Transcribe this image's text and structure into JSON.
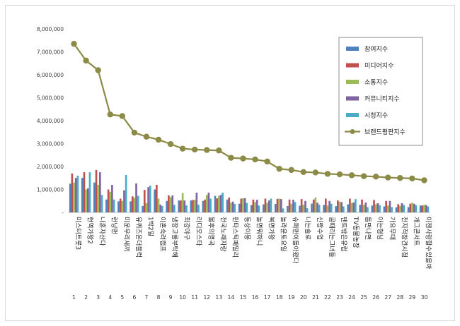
{
  "chart_data": {
    "type": "bar",
    "title": "",
    "xlabel": "",
    "ylabel": "",
    "ylim": [
      0,
      8000000
    ],
    "yticks": [
      "-",
      "1,000,000",
      "2,000,000",
      "3,000,000",
      "4,000,000",
      "5,000,000",
      "6,000,000",
      "7,000,000",
      "8,000,000"
    ],
    "grid": false,
    "legend_position": "top-right",
    "categories": [
      "1",
      "2",
      "3",
      "4",
      "5",
      "6",
      "7",
      "8",
      "9",
      "10",
      "11",
      "12",
      "13",
      "14",
      "15",
      "16",
      "17",
      "18",
      "19",
      "20",
      "21",
      "22",
      "23",
      "24",
      "25",
      "26",
      "27",
      "28",
      "29",
      "30"
    ],
    "category_names": [
      "미스터트롯3",
      "현역가왕2",
      "나혼자산다",
      "런닝맨",
      "미운우리새끼",
      "유퀴즈온더블럭",
      "1박2일",
      "이혼숙려캠프",
      "냉장고를부탁해",
      "최강야구",
      "라디오스타",
      "불후의명곡",
      "전국노래자랑",
      "판타스틱패밀리",
      "동상이몽",
      "놀면뭐하니",
      "복면가왕",
      "놀라운토요일",
      "슈퍼맨이돌아왔다",
      "나는솔로",
      "신랑수업",
      "골때리는그녀들",
      "텐트밖은유럽",
      "TV동물농장",
      "틈만나면",
      "아는형님",
      "가요무대",
      "전지적참견시점",
      "개그콘서트",
      "이젠사랑할수있을까"
    ],
    "series": [
      {
        "name": "참여지수",
        "color": "#4f81bd",
        "values": [
          1250000,
          1500000,
          1300000,
          560000,
          480000,
          480000,
          280000,
          1000000,
          500000,
          520000,
          520000,
          500000,
          720000,
          560000,
          380000,
          320000,
          350000,
          370000,
          280000,
          290000,
          380000,
          320000,
          270000,
          350000,
          330000,
          300000,
          260000,
          220000,
          230000,
          300000
        ]
      },
      {
        "name": "미디어지수",
        "color": "#c0504d",
        "values": [
          1700000,
          1750000,
          1850000,
          1000000,
          600000,
          700000,
          980000,
          1200000,
          740000,
          520000,
          540000,
          560000,
          610000,
          650000,
          600000,
          560000,
          600000,
          590000,
          560000,
          580000,
          560000,
          600000,
          520000,
          600000,
          560000,
          540000,
          500000,
          360000,
          380000,
          300000
        ]
      },
      {
        "name": "소통지수",
        "color": "#9bbb59",
        "values": [
          1300000,
          1000000,
          1200000,
          900000,
          500000,
          640000,
          400000,
          600000,
          660000,
          840000,
          550000,
          760000,
          720000,
          420000,
          620000,
          450000,
          420000,
          600000,
          380000,
          330000,
          650000,
          300000,
          470000,
          410000,
          330000,
          350000,
          300000,
          290000,
          420000,
          330000
        ]
      },
      {
        "name": "커뮤니티지수",
        "color": "#8064a2",
        "values": [
          1500000,
          1050000,
          1750000,
          1200000,
          960000,
          1260000,
          1100000,
          340000,
          740000,
          520000,
          860000,
          860000,
          760000,
          470000,
          620000,
          550000,
          520000,
          580000,
          550000,
          500000,
          420000,
          500000,
          450000,
          430000,
          430000,
          400000,
          500000,
          400000,
          380000,
          320000
        ]
      },
      {
        "name": "시청지수",
        "color": "#4bacc6",
        "values": [
          1600000,
          1750000,
          760000,
          560000,
          1630000,
          720000,
          1170000,
          280000,
          330000,
          310000,
          330000,
          600000,
          860000,
          370000,
          410000,
          300000,
          600000,
          170000,
          450000,
          180000,
          330000,
          380000,
          260000,
          580000,
          230000,
          320000,
          230000,
          320000,
          320000,
          260000
        ]
      }
    ],
    "line_series": {
      "name": "브랜드평판지수",
      "color": "#8b8a46",
      "values": [
        7350000,
        6620000,
        6200000,
        4270000,
        4200000,
        3480000,
        3300000,
        3170000,
        2980000,
        2780000,
        2740000,
        2720000,
        2700000,
        2380000,
        2350000,
        2310000,
        2220000,
        1900000,
        1850000,
        1760000,
        1740000,
        1680000,
        1660000,
        1620000,
        1580000,
        1560000,
        1520000,
        1500000,
        1480000,
        1400000
      ]
    }
  }
}
